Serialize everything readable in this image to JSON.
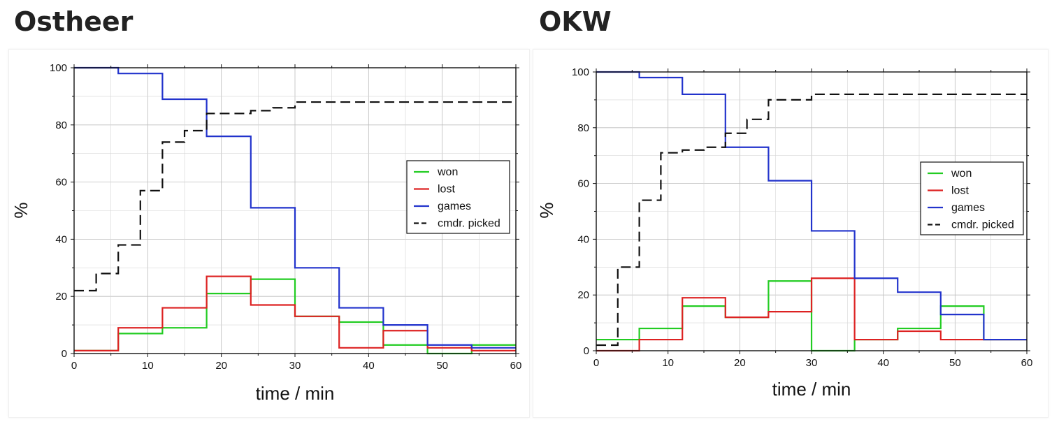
{
  "charts": [
    {
      "panel_title": "Ostheer",
      "chart_data": {
        "type": "line",
        "title": "Ostheer",
        "xlabel": "time / min",
        "ylabel": "%",
        "xlim": [
          0,
          60
        ],
        "ylim": [
          0,
          100
        ],
        "xticks": [
          0,
          10,
          20,
          30,
          40,
          50,
          60
        ],
        "yticks": [
          0,
          20,
          40,
          60,
          80,
          100
        ],
        "grid": true,
        "legend_position": "right",
        "series": [
          {
            "name": "won",
            "color": "#22cc22",
            "dash": "solid",
            "x": [
              0,
              6,
              12,
              18,
              24,
              30,
              36,
              42,
              48,
              54,
              60
            ],
            "y": [
              1,
              7,
              9,
              21,
              26,
              13,
              11,
              3,
              0,
              3,
              3
            ]
          },
          {
            "name": "lost",
            "color": "#dd2222",
            "dash": "solid",
            "x": [
              0,
              6,
              12,
              18,
              24,
              30,
              36,
              42,
              48,
              54,
              60
            ],
            "y": [
              1,
              9,
              16,
              27,
              17,
              13,
              2,
              8,
              2,
              1,
              1
            ]
          },
          {
            "name": "games",
            "color": "#2233cc",
            "dash": "solid",
            "x": [
              0,
              6,
              12,
              18,
              24,
              30,
              36,
              42,
              48,
              54,
              60
            ],
            "y": [
              100,
              98,
              89,
              76,
              51,
              30,
              16,
              10,
              3,
              2,
              2
            ]
          },
          {
            "name": "cmdr. picked",
            "color": "#111111",
            "dash": "dashed",
            "x": [
              0,
              3,
              6,
              9,
              12,
              15,
              18,
              21,
              24,
              27,
              30,
              60
            ],
            "y": [
              22,
              28,
              38,
              57,
              74,
              78,
              84,
              84,
              85,
              86,
              88,
              88
            ]
          }
        ]
      }
    },
    {
      "panel_title": "OKW",
      "chart_data": {
        "type": "line",
        "title": "OKW",
        "xlabel": "time / min",
        "ylabel": "%",
        "xlim": [
          0,
          60
        ],
        "ylim": [
          0,
          100
        ],
        "xticks": [
          0,
          10,
          20,
          30,
          40,
          50,
          60
        ],
        "yticks": [
          0,
          20,
          40,
          60,
          80,
          100
        ],
        "grid": true,
        "legend_position": "right",
        "series": [
          {
            "name": "won",
            "color": "#22cc22",
            "dash": "solid",
            "x": [
              0,
              6,
              12,
              18,
              24,
              30,
              36,
              42,
              48,
              54,
              60
            ],
            "y": [
              4,
              8,
              16,
              12,
              25,
              0,
              4,
              8,
              16,
              4,
              4
            ]
          },
          {
            "name": "lost",
            "color": "#dd2222",
            "dash": "solid",
            "x": [
              0,
              6,
              12,
              18,
              24,
              30,
              36,
              42,
              48,
              54,
              60
            ],
            "y": [
              0,
              4,
              19,
              12,
              14,
              26,
              4,
              7,
              4,
              4,
              4
            ]
          },
          {
            "name": "games",
            "color": "#2233cc",
            "dash": "solid",
            "x": [
              0,
              6,
              12,
              18,
              24,
              30,
              36,
              42,
              48,
              54,
              60
            ],
            "y": [
              100,
              98,
              92,
              73,
              61,
              43,
              26,
              21,
              13,
              4,
              4
            ]
          },
          {
            "name": "cmdr. picked",
            "color": "#111111",
            "dash": "dashed",
            "x": [
              0,
              3,
              6,
              9,
              12,
              15,
              18,
              21,
              24,
              27,
              30,
              60
            ],
            "y": [
              2,
              30,
              54,
              71,
              72,
              73,
              78,
              83,
              90,
              90,
              92,
              92
            ]
          }
        ]
      }
    }
  ]
}
